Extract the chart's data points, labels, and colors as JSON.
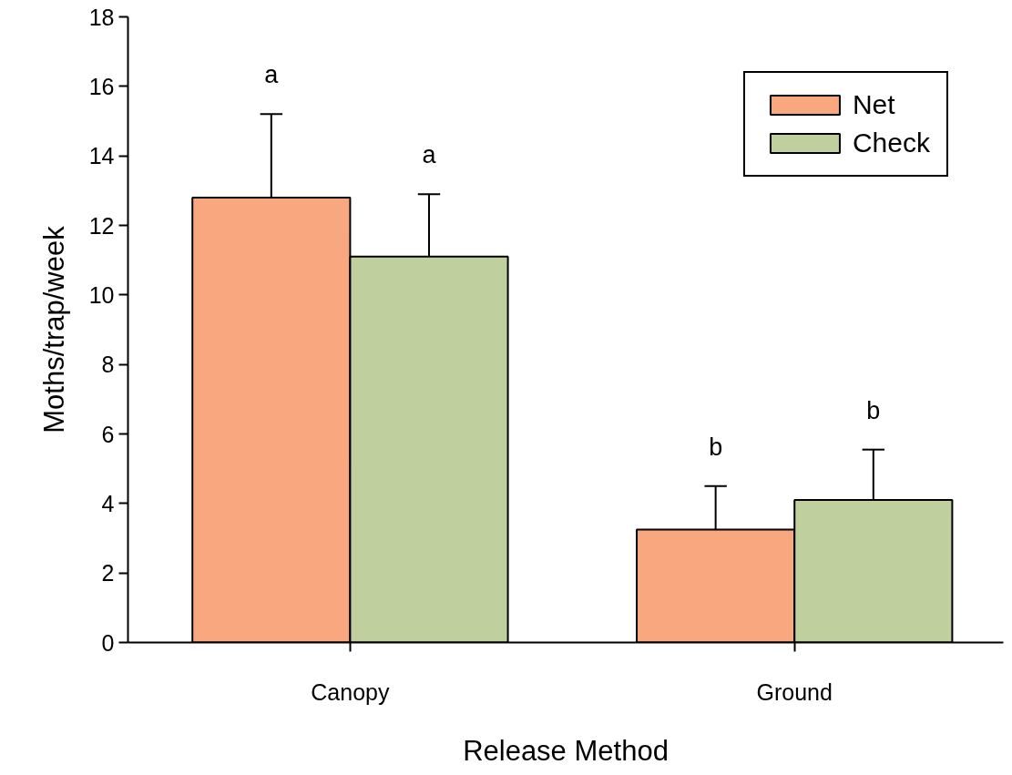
{
  "chart_data": {
    "type": "bar",
    "xlabel": "Release Method",
    "ylabel": "Moths/trap/week",
    "categories": [
      "Canopy",
      "Ground"
    ],
    "series": [
      {
        "name": "Net",
        "color": "#f9a77f",
        "values": [
          12.8,
          3.25
        ],
        "errors": [
          [
            12.8,
            15.2
          ],
          [
            3.25,
            4.5
          ]
        ]
      },
      {
        "name": "Check",
        "color": "#bfd09e",
        "values": [
          11.1,
          4.1
        ],
        "errors": [
          [
            11.1,
            12.9
          ],
          [
            4.1,
            5.55
          ]
        ]
      }
    ],
    "annotations": [
      "a",
      "a",
      "b",
      "b"
    ],
    "ylim": [
      0,
      18
    ],
    "yticks": [
      0,
      2,
      4,
      6,
      8,
      10,
      12,
      14,
      16,
      18
    ],
    "legend": "top right",
    "grid": false
  }
}
